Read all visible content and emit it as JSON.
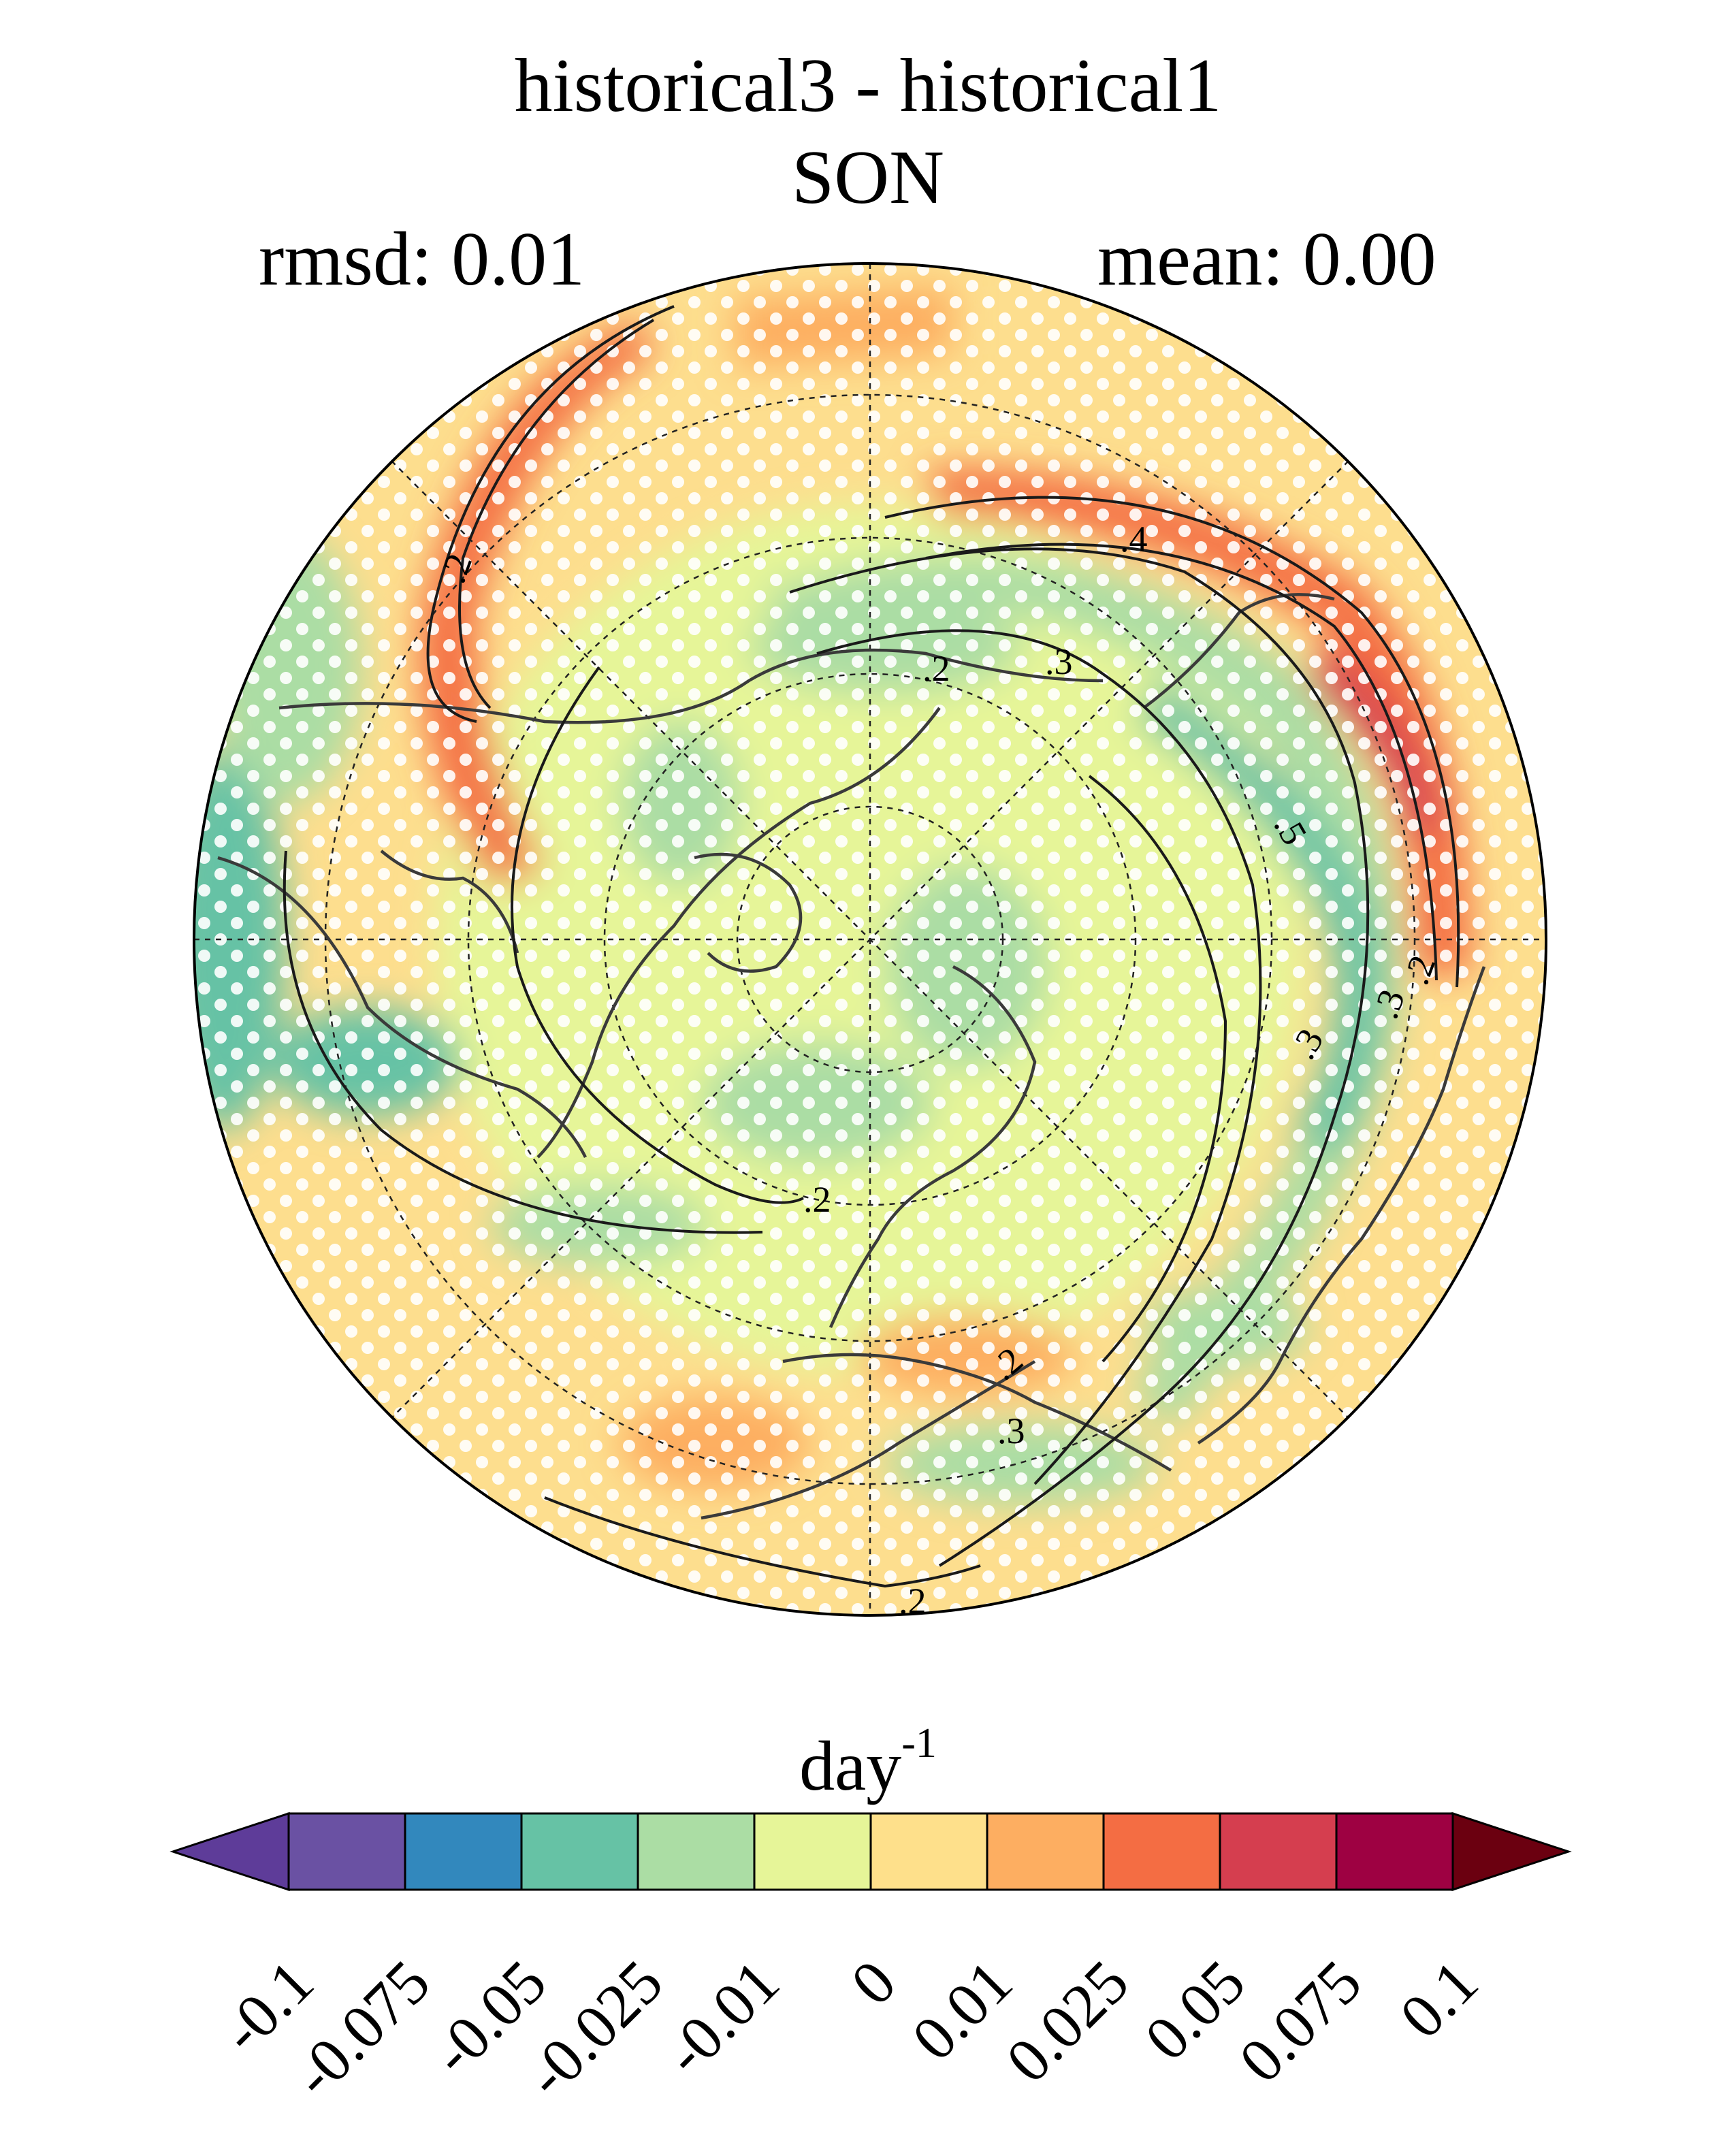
{
  "title": "historical3 - historical1",
  "subtitle": "SON",
  "stats": {
    "left": "rmsd: 0.01",
    "right": "mean: 0.00"
  },
  "colorbar": {
    "unit_base": "day",
    "unit_exp": "-1",
    "tick_labels": [
      "-0.1",
      "-0.075",
      "-0.05",
      "-0.025",
      "-0.01",
      "0",
      "0.01",
      "0.025",
      "0.05",
      "0.075",
      "0.1"
    ],
    "colors": [
      "#5e3c99",
      "#6a51a3",
      "#3288bd",
      "#66c2a5",
      "#abdda4",
      "#e6f598",
      "#fee08b",
      "#fdae61",
      "#f46d43",
      "#d53e4f",
      "#9e0142",
      "#6b0010"
    ]
  },
  "map": {
    "projection": "north polar stereographic",
    "stippling": "white dots",
    "contour_labels": [
      ".2",
      ".2",
      ".2",
      ".2",
      ".3",
      ".3",
      ".4",
      ".5",
      ".2",
      ".3",
      ".2",
      ".3",
      ".2"
    ]
  }
}
